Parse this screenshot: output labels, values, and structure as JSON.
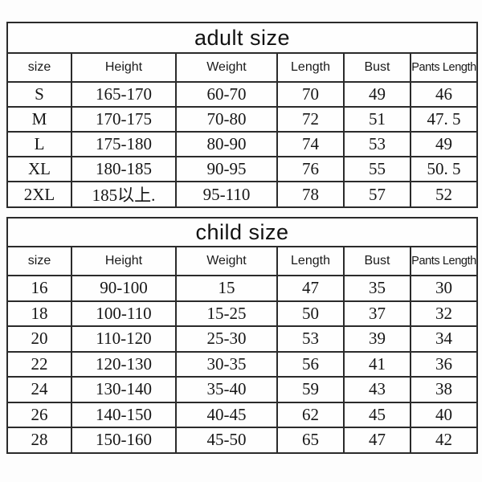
{
  "page": {
    "background_color": "#fdfdfd",
    "text_color": "#1a1a1a",
    "border_color": "#2b2b2b"
  },
  "tables": [
    {
      "title": "adult size",
      "columns": [
        "size",
        "Height",
        "Weight",
        "Length",
        "Bust",
        "Pants Length"
      ],
      "rows": [
        [
          "S",
          "165-170",
          "60-70",
          "70",
          "49",
          "46"
        ],
        [
          "M",
          "170-175",
          "70-80",
          "72",
          "51",
          "47. 5"
        ],
        [
          "L",
          "175-180",
          "80-90",
          "74",
          "53",
          "49"
        ],
        [
          "XL",
          "180-185",
          "90-95",
          "76",
          "55",
          "50. 5"
        ],
        [
          "2XL",
          "185以上.",
          "95-110",
          "78",
          "57",
          "52"
        ]
      ]
    },
    {
      "title": "child size",
      "columns": [
        "size",
        "Height",
        "Weight",
        "Length",
        "Bust",
        "Pants Length"
      ],
      "rows": [
        [
          "16",
          "90-100",
          "15",
          "47",
          "35",
          "30"
        ],
        [
          "18",
          "100-110",
          "15-25",
          "50",
          "37",
          "32"
        ],
        [
          "20",
          "110-120",
          "25-30",
          "53",
          "39",
          "34"
        ],
        [
          "22",
          "120-130",
          "30-35",
          "56",
          "41",
          "36"
        ],
        [
          "24",
          "130-140",
          "35-40",
          "59",
          "43",
          "38"
        ],
        [
          "26",
          "140-150",
          "40-45",
          "62",
          "45",
          "40"
        ],
        [
          "28",
          "150-160",
          "45-50",
          "65",
          "47",
          "42"
        ]
      ]
    }
  ]
}
